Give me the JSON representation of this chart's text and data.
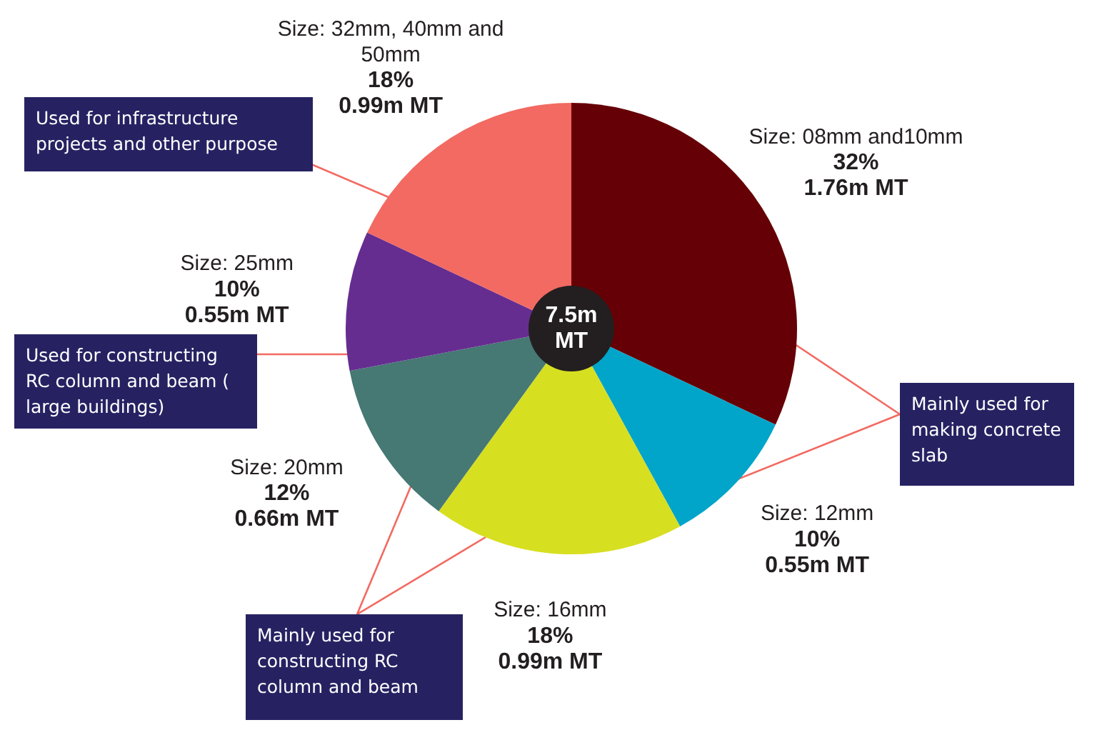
{
  "chart_data": {
    "type": "pie",
    "title": "7.5m MT",
    "categories": [
      "Size: 08mm and10mm",
      "Size: 12mm",
      "Size: 16mm",
      "Size: 20mm",
      "Size: 25mm",
      "Size: 32mm, 40mm and 50mm"
    ],
    "values": [
      32,
      10,
      18,
      12,
      10,
      18
    ],
    "value_labels": [
      "32%\n1.76m MT",
      "10%\n0.55m MT",
      "18%\n0.99m MT",
      "12%\n0.66m MT",
      "10%\n0.55m MT",
      "18%\n0.99m MT"
    ],
    "colors": [
      "#650006",
      "#00a5c9",
      "#d7df21",
      "#467874",
      "#662d91",
      "#f26a61"
    ],
    "annotations": [
      "Used for infrastructure projects and other purpose",
      "Used for constructing RC column and beam ( large buildings)",
      "Mainly used for making concrete slab",
      "Mainly used for constructing RC column and beam"
    ],
    "legend": false
  }
}
